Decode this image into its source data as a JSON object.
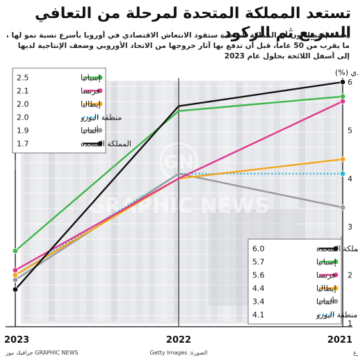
{
  "title": "تستعد المملكة المتحدة لمرحلة من التعافي السريع ثم الركود",
  "subtitle_lines": [
    "يعتقد إقتصاديون أن المملكة المتحدة ستقود الانتعاش الاقتصادي في أوروبا بأسرع نسبة نمو لها منذ",
    "ما يقرب من 50 عاماً، قبل أن تدفع بها آثار خروجها من الاتحاد الأوروبي وضعف الإنتاجية لديها",
    "إلى أسفل اللائحة بحلول عام 2023"
  ],
  "watermark": "GRAPHIC NEWS",
  "footer": {
    "source": "المصدر: بلومبرغ",
    "photo": "الصورة: Getty Images",
    "credit": "جرافيك نيوز GRAPHIC NEWS"
  },
  "chart_data": {
    "type": "line",
    "ylabel": "النمو الاقتصادي (%)",
    "x": [
      "2021",
      "2022",
      "2023"
    ],
    "y_ticks": [
      "1",
      "2",
      "3",
      "4",
      "5",
      "6"
    ],
    "ylim": [
      1,
      6
    ],
    "series": [
      {
        "name": "المملكة المتحدة",
        "values": [
          6.0,
          5.5,
          1.7
        ],
        "color": "#111111",
        "dashed": false
      },
      {
        "name": "إسبانيا",
        "values": [
          5.7,
          5.4,
          2.5
        ],
        "color": "#3fb54a",
        "dashed": false
      },
      {
        "name": "فرنسا",
        "values": [
          5.6,
          4.0,
          2.1
        ],
        "color": "#e0378e",
        "dashed": false
      },
      {
        "name": "إيطاليا",
        "values": [
          4.4,
          4.0,
          2.0
        ],
        "color": "#f2a51c",
        "dashed": false
      },
      {
        "name": "ألمانيا",
        "values": [
          3.4,
          4.1,
          1.9
        ],
        "color": "#9a9a9a",
        "dashed": false
      },
      {
        "name": "منطقة اليورو",
        "values": [
          4.1,
          4.1,
          2.0
        ],
        "color": "#22b4d6",
        "dashed": true
      }
    ],
    "legend_2021": [
      {
        "name": "المملكة المتحدة",
        "value": "6.0",
        "color": "#111111",
        "dashed": false
      },
      {
        "name": "إسبانيا",
        "value": "5.7",
        "color": "#3fb54a",
        "dashed": false
      },
      {
        "name": "فرنسا",
        "value": "5.6",
        "color": "#e0378e",
        "dashed": false
      },
      {
        "name": "إيطاليا",
        "value": "4.4",
        "color": "#f2a51c",
        "dashed": false
      },
      {
        "name": "ألمانيا",
        "value": "3.4",
        "color": "#9a9a9a",
        "dashed": false
      },
      {
        "name": "منطقة اليورو",
        "value": "4.1",
        "color": "#22b4d6",
        "dashed": true
      }
    ],
    "legend_2023": [
      {
        "name": "إسبانيا",
        "value": "2.5",
        "color": "#3fb54a",
        "dashed": false
      },
      {
        "name": "فرنسا",
        "value": "2.1",
        "color": "#e0378e",
        "dashed": false
      },
      {
        "name": "إيطاليا",
        "value": "2.0",
        "color": "#f2a51c",
        "dashed": false
      },
      {
        "name": "منطقة اليورو",
        "value": "2.0",
        "color": "#22b4d6",
        "dashed": true
      },
      {
        "name": "ألمانيا",
        "value": "1.9",
        "color": "#9a9a9a",
        "dashed": false
      },
      {
        "name": "المملكة المتحدة",
        "value": "1.7",
        "color": "#111111",
        "dashed": false
      }
    ]
  }
}
